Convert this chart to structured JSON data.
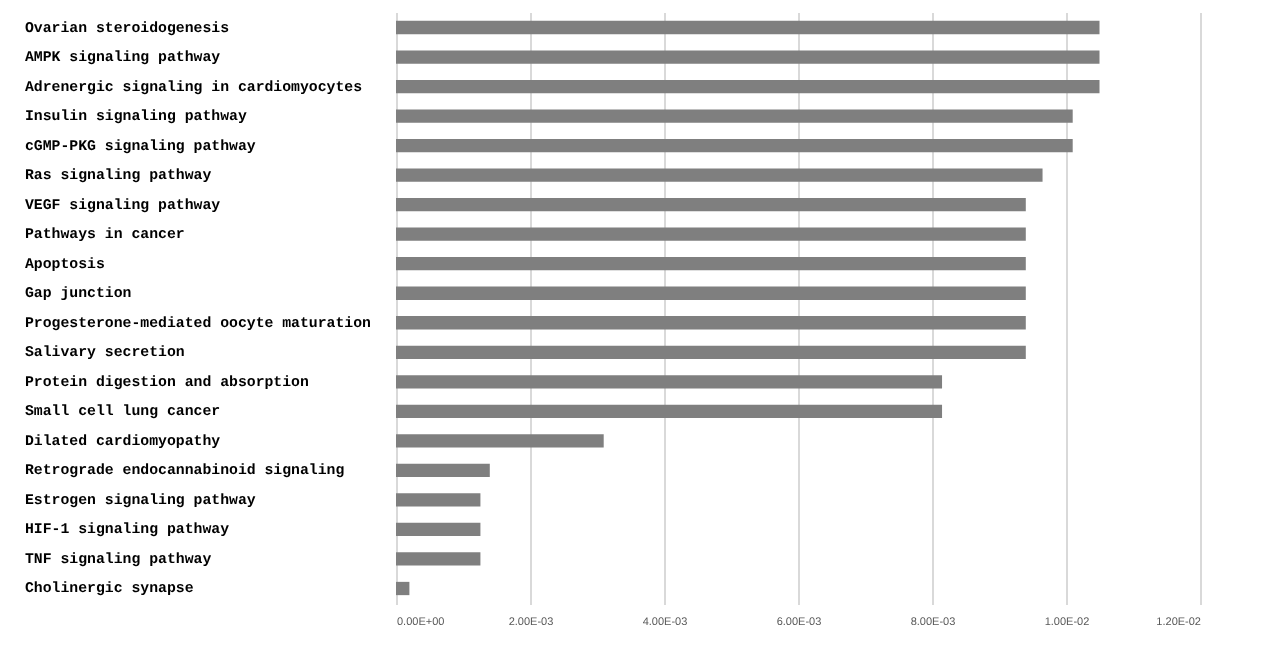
{
  "chart_data": {
    "type": "bar",
    "orientation": "horizontal",
    "categories": [
      "Ovarian steroidogenesis",
      "AMPK signaling pathway",
      "Adrenergic signaling in cardiomyocytes",
      "Insulin signaling pathway",
      "cGMP-PKG signaling pathway",
      "Ras signaling pathway",
      "VEGF signaling pathway",
      "Pathways in cancer",
      "Apoptosis",
      "Gap junction",
      "Progesterone-mediated oocyte maturation",
      "Salivary secretion",
      "Protein digestion and absorption",
      "Small cell lung cancer",
      "Dilated cardiomyopathy",
      "Retrograde endocannabinoid signaling",
      "Estrogen signaling pathway",
      "HIF-1 signaling pathway",
      "TNF signaling pathway",
      "Cholinergic synapse"
    ],
    "values": [
      0.0105,
      0.0105,
      0.0105,
      0.0101,
      0.0101,
      0.00965,
      0.0094,
      0.0094,
      0.0094,
      0.0094,
      0.0094,
      0.0094,
      0.00815,
      0.00815,
      0.0031,
      0.0014,
      0.00126,
      0.00126,
      0.00126,
      0.0002
    ],
    "color": "#7f7f7f",
    "xlim": [
      0,
      0.012
    ],
    "xticks": [
      {
        "value": 0,
        "label": "0.00E+00"
      },
      {
        "value": 0.002,
        "label": "2.00E-03"
      },
      {
        "value": 0.004,
        "label": "4.00E-03"
      },
      {
        "value": 0.006,
        "label": "6.00E-03"
      },
      {
        "value": 0.008,
        "label": "8.00E-03"
      },
      {
        "value": 0.01,
        "label": "1.00E-02"
      },
      {
        "value": 0.012,
        "label": "1.20E-02"
      }
    ],
    "grid": "x"
  }
}
